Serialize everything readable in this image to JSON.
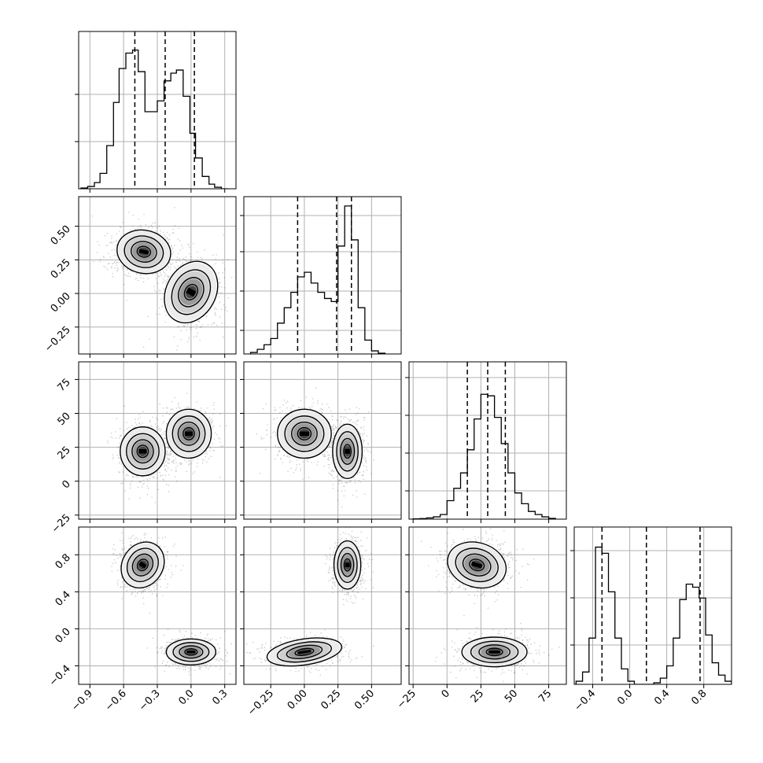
{
  "chart_data": {
    "type": "corner",
    "parameters": [
      {
        "range": [
          -1.0,
          0.4
        ],
        "ticks": [
          -0.9,
          -0.6,
          -0.3,
          0.0,
          0.3
        ],
        "tick_labels": [
          "−0.9",
          "−0.6",
          "−0.3",
          "0.0",
          "0.3"
        ]
      },
      {
        "range": [
          -0.45,
          0.72
        ],
        "ticks": [
          -0.25,
          0.0,
          0.25,
          0.5
        ],
        "tick_labels": [
          "−0.25",
          "0.00",
          "0.25",
          "0.50"
        ]
      },
      {
        "range": [
          -28,
          88
        ],
        "ticks": [
          -25,
          0,
          25,
          50,
          75
        ],
        "tick_labels": [
          "−25",
          "0",
          "25",
          "50",
          "75"
        ]
      },
      {
        "range": [
          -0.6,
          1.1
        ],
        "ticks": [
          -0.4,
          0.0,
          0.4,
          0.8
        ],
        "tick_labels": [
          "−0.4",
          "0.0",
          "0.4",
          "0.8"
        ]
      }
    ],
    "histograms": [
      {
        "bin_edges": [
          -0.98,
          -0.92,
          -0.86,
          -0.81,
          -0.75,
          -0.69,
          -0.64,
          -0.58,
          -0.52,
          -0.47,
          -0.41,
          -0.35,
          -0.3,
          -0.24,
          -0.18,
          -0.13,
          -0.07,
          -0.01,
          0.04,
          0.1,
          0.16,
          0.21,
          0.27,
          0.33
        ],
        "counts": [
          0.005,
          0.015,
          0.04,
          0.1,
          0.28,
          0.56,
          0.78,
          0.88,
          0.9,
          0.76,
          0.5,
          0.5,
          0.57,
          0.7,
          0.75,
          0.77,
          0.6,
          0.36,
          0.2,
          0.08,
          0.03,
          0.01,
          0.0
        ],
        "quantiles": [
          -0.5,
          -0.23,
          0.03
        ],
        "y_ticks": [
          0.3,
          0.6
        ]
      },
      {
        "bin_edges": [
          -0.4,
          -0.35,
          -0.3,
          -0.25,
          -0.2,
          -0.15,
          -0.1,
          -0.05,
          0.0,
          0.05,
          0.1,
          0.15,
          0.2,
          0.25,
          0.3,
          0.35,
          0.4,
          0.45,
          0.5,
          0.55,
          0.6
        ],
        "counts": [
          0.01,
          0.03,
          0.06,
          0.1,
          0.2,
          0.3,
          0.4,
          0.5,
          0.53,
          0.46,
          0.4,
          0.36,
          0.34,
          0.7,
          0.96,
          0.74,
          0.3,
          0.09,
          0.02,
          0.005
        ],
        "quantiles": [
          -0.05,
          0.24,
          0.35
        ],
        "y_ticks": [
          0.15,
          0.4,
          0.65,
          0.88
        ]
      },
      {
        "bin_edges": [
          -25,
          -20,
          -15,
          -10,
          -5,
          0,
          5,
          10,
          15,
          20,
          25,
          30,
          35,
          40,
          45,
          50,
          55,
          60,
          65,
          70,
          75,
          80
        ],
        "counts": [
          0.002,
          0.004,
          0.008,
          0.015,
          0.03,
          0.12,
          0.2,
          0.3,
          0.45,
          0.65,
          0.81,
          0.8,
          0.66,
          0.49,
          0.3,
          0.17,
          0.1,
          0.05,
          0.03,
          0.015,
          0.005
        ],
        "quantiles": [
          15,
          30,
          43
        ],
        "y_ticks": [
          0.18,
          0.42,
          0.66,
          0.9
        ]
      },
      {
        "bin_edges": [
          -0.58,
          -0.51,
          -0.44,
          -0.37,
          -0.3,
          -0.23,
          -0.16,
          -0.09,
          -0.02,
          0.05,
          0.12,
          0.19,
          0.26,
          0.33,
          0.4,
          0.47,
          0.54,
          0.61,
          0.68,
          0.75,
          0.82,
          0.89,
          0.96,
          1.03,
          1.1
        ],
        "counts": [
          0.02,
          0.08,
          0.3,
          0.89,
          0.85,
          0.6,
          0.3,
          0.1,
          0.02,
          0.0,
          0.0,
          0.0,
          0.01,
          0.04,
          0.12,
          0.3,
          0.55,
          0.65,
          0.63,
          0.56,
          0.32,
          0.14,
          0.06,
          0.02
        ],
        "quantiles": [
          -0.3,
          0.18,
          0.76
        ],
        "y_ticks": [
          0.25,
          0.55,
          0.85
        ]
      }
    ],
    "density_pairs": [
      {
        "x_param": 0,
        "y_param": 1,
        "modes": [
          {
            "cx": -0.42,
            "cy": 0.31,
            "sx": 0.12,
            "sy": 0.08,
            "rot": -0.2,
            "w": 0.55
          },
          {
            "cx": 0.0,
            "cy": 0.01,
            "sx": 0.11,
            "sy": 0.12,
            "rot": -0.5,
            "w": 0.45
          }
        ]
      },
      {
        "x_param": 0,
        "y_param": 2,
        "modes": [
          {
            "cx": -0.43,
            "cy": 22,
            "sx": 0.1,
            "sy": 9,
            "rot": 0.0,
            "w": 0.55
          },
          {
            "cx": -0.02,
            "cy": 35,
            "sx": 0.1,
            "sy": 9,
            "rot": 0.0,
            "w": 0.45
          }
        ]
      },
      {
        "x_param": 1,
        "y_param": 2,
        "modes": [
          {
            "cx": 0.0,
            "cy": 35,
            "sx": 0.1,
            "sy": 9,
            "rot": 0.0,
            "w": 0.45
          },
          {
            "cx": 0.32,
            "cy": 22,
            "sx": 0.055,
            "sy": 10,
            "rot": 0.0,
            "w": 0.55
          }
        ]
      },
      {
        "x_param": 0,
        "y_param": 3,
        "modes": [
          {
            "cx": -0.43,
            "cy": 0.69,
            "sx": 0.09,
            "sy": 0.13,
            "rot": -0.6,
            "w": 0.55
          },
          {
            "cx": 0.0,
            "cy": -0.25,
            "sx": 0.11,
            "sy": 0.07,
            "rot": 0.0,
            "w": 0.45
          }
        ]
      },
      {
        "x_param": 1,
        "y_param": 3,
        "modes": [
          {
            "cx": 0.32,
            "cy": 0.69,
            "sx": 0.05,
            "sy": 0.13,
            "rot": 0.0,
            "w": 0.55
          },
          {
            "cx": 0.0,
            "cy": -0.25,
            "sx": 0.14,
            "sy": 0.07,
            "rot": 0.15,
            "w": 0.45
          }
        ]
      },
      {
        "x_param": 2,
        "y_param": 3,
        "modes": [
          {
            "cx": 22,
            "cy": 0.69,
            "sx": 11,
            "sy": 0.12,
            "rot": -0.3,
            "w": 0.55
          },
          {
            "cx": 35,
            "cy": -0.25,
            "sx": 12,
            "sy": 0.08,
            "rot": 0.0,
            "w": 0.45
          }
        ]
      }
    ],
    "grid": true,
    "legend": "none"
  }
}
